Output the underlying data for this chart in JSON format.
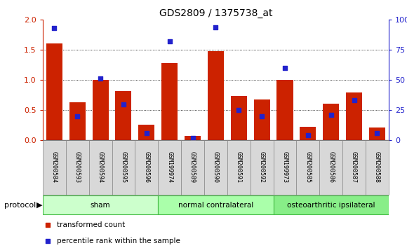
{
  "title": "GDS2809 / 1375738_at",
  "samples": [
    "GSM200584",
    "GSM200593",
    "GSM200594",
    "GSM200595",
    "GSM200596",
    "GSM199974",
    "GSM200589",
    "GSM200590",
    "GSM200591",
    "GSM200592",
    "GSM199973",
    "GSM200585",
    "GSM200586",
    "GSM200587",
    "GSM200588"
  ],
  "red_values": [
    1.61,
    0.63,
    1.0,
    0.82,
    0.26,
    1.28,
    0.07,
    1.48,
    0.73,
    0.67,
    1.0,
    0.22,
    0.61,
    0.79,
    0.21
  ],
  "blue_pct": [
    93,
    20,
    51,
    30,
    6,
    82,
    2,
    94,
    25,
    20,
    60,
    4,
    21,
    33,
    6
  ],
  "groups": [
    {
      "label": "sham",
      "start": 0,
      "end": 5
    },
    {
      "label": "normal contralateral",
      "start": 5,
      "end": 10
    },
    {
      "label": "osteoarthritic ipsilateral",
      "start": 10,
      "end": 15
    }
  ],
  "group_colors": [
    "#ccffcc",
    "#aaffaa",
    "#88ee88"
  ],
  "ylim_left": [
    0,
    2
  ],
  "ylim_right": [
    0,
    100
  ],
  "yticks_left": [
    0,
    0.5,
    1.0,
    1.5,
    2.0
  ],
  "yticks_right": [
    0,
    25,
    50,
    75,
    100
  ],
  "ytick_labels_right": [
    "0",
    "25",
    "50",
    "75",
    "100%"
  ],
  "bar_color": "#cc2200",
  "dot_color": "#2222cc",
  "protocol_label": "protocol",
  "legend_items": [
    {
      "label": "transformed count",
      "color": "#cc2200"
    },
    {
      "label": "percentile rank within the sample",
      "color": "#2222cc"
    }
  ]
}
